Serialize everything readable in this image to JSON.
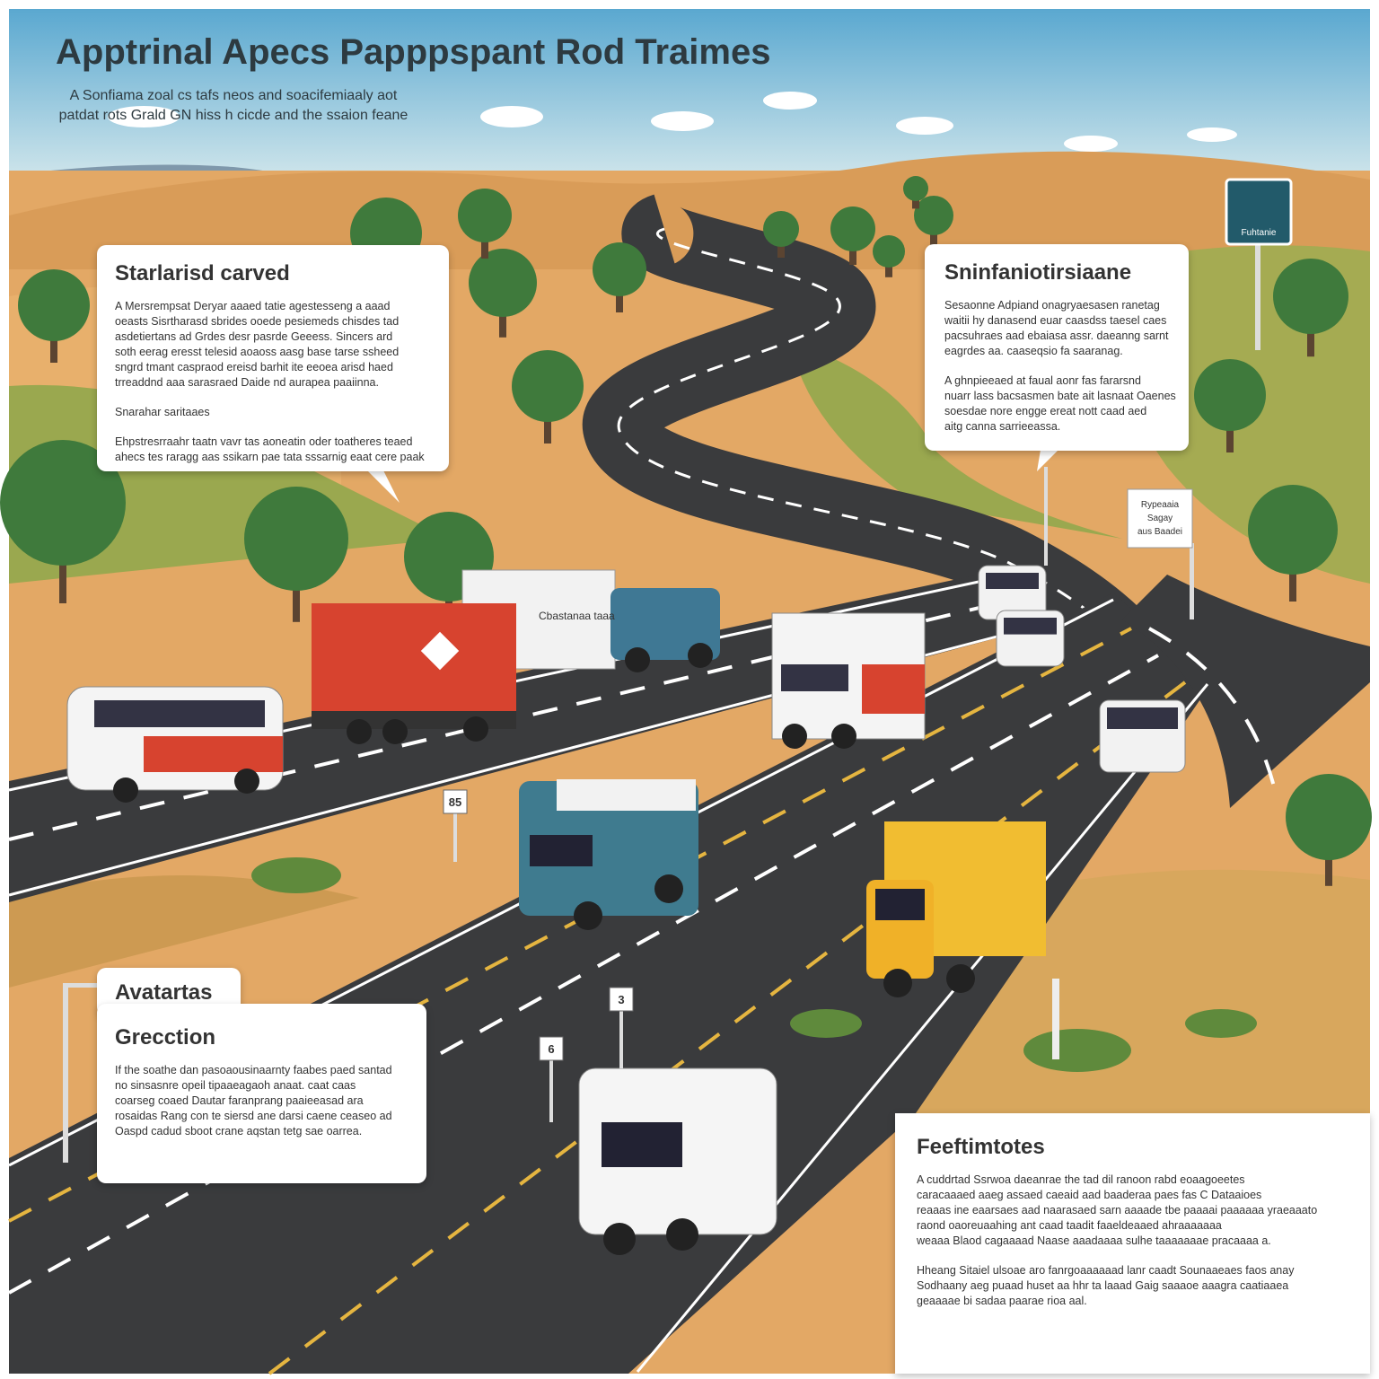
{
  "header": {
    "title": "Apptrinal Apecs Papppspant Rod Traimes",
    "subtitle": [
      "A Sonfiama zoal cs tafs neos and soacifemiaaly aot",
      "patdat rots Grald GN hiss h cicde and the ssaion feane"
    ]
  },
  "panels": [
    {
      "heading": "Starlarisd carved",
      "paragraphs": [
        [
          "A Mersrempsat Deryar aaaed tatie agestesseng a aaad",
          "oeasts Sisrtharasd sbrides ooede pesiemeds chisdes tad",
          "asdetiertans ad Grdes desr pasrde Geeess. Sincers ard",
          "soth eerag eresst telesid aoaoss aasg base tarse ssheed",
          "sngrd tmant caspraod ereisd barhit ite eeoea arisd haed",
          "trreaddnd aaa sarasraed Daide nd aurapea paaiinna."
        ],
        [
          "Snarahar saritaaes"
        ],
        [
          "Ehpstresrraahr taatn vavr tas aoneatin oder toatheres teaed",
          "ahecs tes raragg aas ssikarn pae tata sssarnig eaat cere paak"
        ]
      ]
    },
    {
      "heading": "Sninfaniotirsiaane",
      "paragraphs": [
        [
          "Sesaonne Adpiand onagryaesasen ranetag",
          "waitii hy danasend euar caasdss taesel caes",
          "pacsuhraes aad ebaiasa assr. daeanng sarnt",
          "eagrdes aa. caaseqsio fa saaranag."
        ],
        [
          "A ghnpieeaed at faual aonr fas fararsnd",
          "nuarr lass bacsasmen bate ait lasnaat Oaenes",
          "soesdae nore engge ereat nott caad aed",
          "aitg canna sarrieeassa."
        ]
      ]
    },
    {
      "heading": "Avatartas",
      "subheading": "Grecction",
      "paragraphs": [
        [
          "If the soathe dan pasoaousinaarnty faabes paed santad",
          "no sinsasnre opeil tipaaeagaoh anaat. caat caas",
          "coarseg coaed Dautar faranprang paaieeasad ara",
          "rosaidas Rang con te siersd ane darsi caene ceaseo ad",
          "Oaspd cadud sboot crane aqstan tetg sae oarrea."
        ]
      ]
    },
    {
      "heading": "Feeftimtotes",
      "paragraphs": [
        [
          "A cuddrtad Ssrwoa daeanrae the tad dil ranoon rabd eoaagoeetes",
          "caracaaaed aaeg assaed caeaid aad baaderaa paes fas C Dataaioes",
          "reaaas ine eaarsaes aad naarasaed sarn aaaade tbe paaaai paaaaaa yraeaaato",
          "raond oaoreuaahing ant caad taadit faaeldeaaed ahraaaaaaa",
          "weaaa Blaod cagaaaad Naase aaadaaaa sulhe taaaaaaae pracaaaa a."
        ],
        [
          "Hheang Sitaiel ulsoae aro fanrgoaaaaaad lanr caadt Sounaaeaes faos anay",
          "Sodhaany aeg puaad huset aa hhr ta laaad Gaig saaaoe aaagra caatiaaea",
          "geaaaae bi sadaa paarae rioa aal."
        ]
      ]
    }
  ],
  "signs": {
    "top_sign": "Fuhtanie",
    "side_sign": [
      "Rypeaaia",
      "Sagay",
      "aus Baadei"
    ],
    "markers": [
      "85",
      "3",
      "6"
    ]
  },
  "truck_label": "Cbastanaa taaa"
}
